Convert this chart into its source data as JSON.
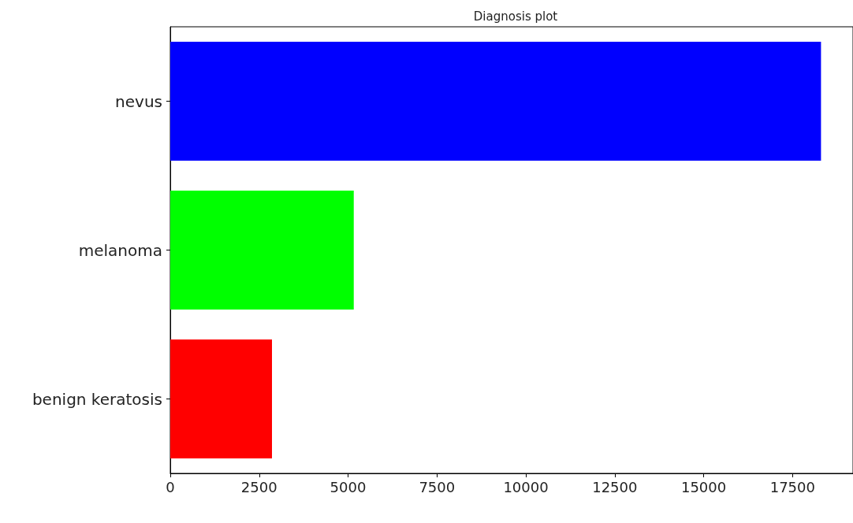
{
  "chart_data": {
    "type": "bar",
    "title": "Diagnosis plot",
    "orientation": "horizontal",
    "categories": [
      "nevus",
      "melanoma",
      "benign keratosis"
    ],
    "values": [
      18300,
      5160,
      2860
    ],
    "colors": [
      "#0000ff",
      "#00ff00",
      "#ff0000"
    ],
    "xlim": [
      0,
      19200
    ],
    "xticks": [
      0,
      2500,
      5000,
      7500,
      10000,
      12500,
      15000,
      17500
    ]
  }
}
